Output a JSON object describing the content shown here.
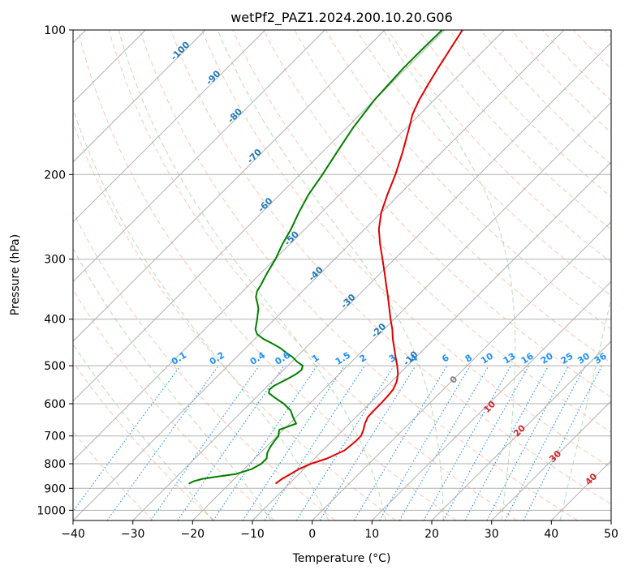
{
  "chart_data": {
    "type": "line",
    "title": "wetPf2_PAZ1.2024.200.10.20.G06",
    "xlabel": "Temperature (°C)",
    "ylabel": "Pressure (hPa)",
    "xlim": [
      -40,
      50
    ],
    "ylim": [
      1050,
      100
    ],
    "y_scale": "log",
    "grid": true,
    "x_ticks": [
      -40,
      -30,
      -20,
      -10,
      0,
      10,
      20,
      30,
      40,
      50
    ],
    "y_ticks": [
      100,
      200,
      300,
      400,
      500,
      600,
      700,
      800,
      900,
      1000
    ],
    "colors": {
      "temperature": "#e00000",
      "dewpoint": "#008000",
      "isotherm_label": "#1f77b4",
      "mixing_ratio": "#1e90ff",
      "moist_adiabat_label": "#d62728",
      "zero_label": "#808080",
      "dry_adiabat": "#ff7f50",
      "moist_adiabat": "#2ca02c",
      "grid": "#b0b0b0"
    },
    "series": [
      {
        "key": "temperature",
        "points": [
          [
            880,
            -12.3
          ],
          [
            860,
            -12.0
          ],
          [
            840,
            -11.4
          ],
          [
            820,
            -10.8
          ],
          [
            800,
            -9.7
          ],
          [
            780,
            -7.9
          ],
          [
            750,
            -6.3
          ],
          [
            720,
            -6.0
          ],
          [
            700,
            -6.0
          ],
          [
            680,
            -6.6
          ],
          [
            660,
            -7.4
          ],
          [
            640,
            -8.0
          ],
          [
            620,
            -8.1
          ],
          [
            600,
            -8.1
          ],
          [
            580,
            -8.2
          ],
          [
            560,
            -8.4
          ],
          [
            540,
            -9.1
          ],
          [
            520,
            -10.2
          ],
          [
            500,
            -11.7
          ],
          [
            480,
            -13.4
          ],
          [
            460,
            -15.1
          ],
          [
            440,
            -16.9
          ],
          [
            420,
            -18.6
          ],
          [
            400,
            -20.6
          ],
          [
            380,
            -22.6
          ],
          [
            360,
            -24.7
          ],
          [
            340,
            -27.0
          ],
          [
            320,
            -29.4
          ],
          [
            300,
            -32.0
          ],
          [
            280,
            -34.8
          ],
          [
            260,
            -37.6
          ],
          [
            240,
            -40.0
          ],
          [
            220,
            -42.0
          ],
          [
            200,
            -44.0
          ],
          [
            180,
            -46.5
          ],
          [
            160,
            -49.5
          ],
          [
            150,
            -51.2
          ],
          [
            140,
            -52.5
          ],
          [
            130,
            -53.6
          ],
          [
            120,
            -54.7
          ],
          [
            110,
            -55.8
          ],
          [
            100,
            -57.0
          ]
        ]
      },
      {
        "key": "dewpoint",
        "points": [
          [
            880,
            -26.8
          ],
          [
            870,
            -26.4
          ],
          [
            860,
            -25.3
          ],
          [
            850,
            -23.0
          ],
          [
            840,
            -20.5
          ],
          [
            820,
            -18.7
          ],
          [
            800,
            -18.0
          ],
          [
            780,
            -18.0
          ],
          [
            760,
            -18.8
          ],
          [
            740,
            -19.3
          ],
          [
            720,
            -19.6
          ],
          [
            700,
            -19.8
          ],
          [
            680,
            -20.7
          ],
          [
            660,
            -18.9
          ],
          [
            640,
            -20.5
          ],
          [
            620,
            -22.0
          ],
          [
            600,
            -24.3
          ],
          [
            580,
            -27.2
          ],
          [
            570,
            -28.6
          ],
          [
            560,
            -29.1
          ],
          [
            550,
            -28.9
          ],
          [
            540,
            -28.3
          ],
          [
            530,
            -27.7
          ],
          [
            520,
            -27.2
          ],
          [
            510,
            -27.0
          ],
          [
            500,
            -27.5
          ],
          [
            490,
            -29.2
          ],
          [
            480,
            -30.6
          ],
          [
            470,
            -32.4
          ],
          [
            460,
            -34.1
          ],
          [
            450,
            -36.2
          ],
          [
            440,
            -38.5
          ],
          [
            430,
            -40.4
          ],
          [
            420,
            -41.5
          ],
          [
            410,
            -42.2
          ],
          [
            400,
            -42.9
          ],
          [
            390,
            -43.7
          ],
          [
            380,
            -44.5
          ],
          [
            370,
            -45.6
          ],
          [
            360,
            -46.8
          ],
          [
            350,
            -47.6
          ],
          [
            340,
            -48.0
          ],
          [
            320,
            -49.0
          ],
          [
            300,
            -49.9
          ],
          [
            280,
            -51.2
          ],
          [
            260,
            -52.3
          ],
          [
            240,
            -53.8
          ],
          [
            220,
            -55.2
          ],
          [
            200,
            -56.2
          ],
          [
            180,
            -57.5
          ],
          [
            160,
            -58.9
          ],
          [
            140,
            -60.0
          ],
          [
            120,
            -60.5
          ],
          [
            110,
            -60.5
          ],
          [
            100,
            -60.4
          ]
        ]
      }
    ],
    "isotherm_labels": [
      "-100",
      "-90",
      "-80",
      "-70",
      "-60",
      "-50",
      "-40",
      "-30",
      "-20",
      "-10"
    ],
    "mixing_ratio_labels": [
      "0.1",
      "0.2",
      "0.4",
      "0.6",
      "1",
      "1.5",
      "2",
      "3",
      "4",
      "6",
      "8",
      "10",
      "13",
      "16",
      "20",
      "25",
      "30",
      "36"
    ],
    "moist_adiabat_labels": [
      "0",
      "10",
      "20",
      "30",
      "40"
    ]
  }
}
